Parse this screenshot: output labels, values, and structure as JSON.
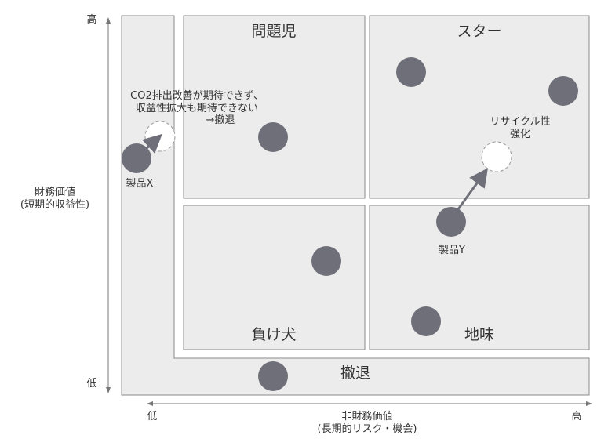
{
  "axes": {
    "y_label_line1": "財務価値",
    "y_label_line2": "(短期的収益性)",
    "y_high": "高",
    "y_low": "低",
    "x_label_line1": "非財務価値",
    "x_label_line2": "(長期的リスク・機会)",
    "x_low": "低",
    "x_high": "高"
  },
  "quadrants": {
    "top_left": "問題児",
    "top_right": "スター",
    "bottom_left": "負け犬",
    "bottom_right": "地味",
    "exit_band": "撤退"
  },
  "annotations": {
    "product_x": "製品X",
    "product_y": "製品Y",
    "x_note_line1": "CO2排出改善が期待できず、",
    "x_note_line2": "収益性拡大も期待できない",
    "x_note_line3": "→撤退",
    "y_note_line1": "リサイクル性",
    "y_note_line2": "強化"
  },
  "colors": {
    "circle": "#6f6f7a",
    "panel": "#ececec",
    "border": "#8a8a8a"
  }
}
